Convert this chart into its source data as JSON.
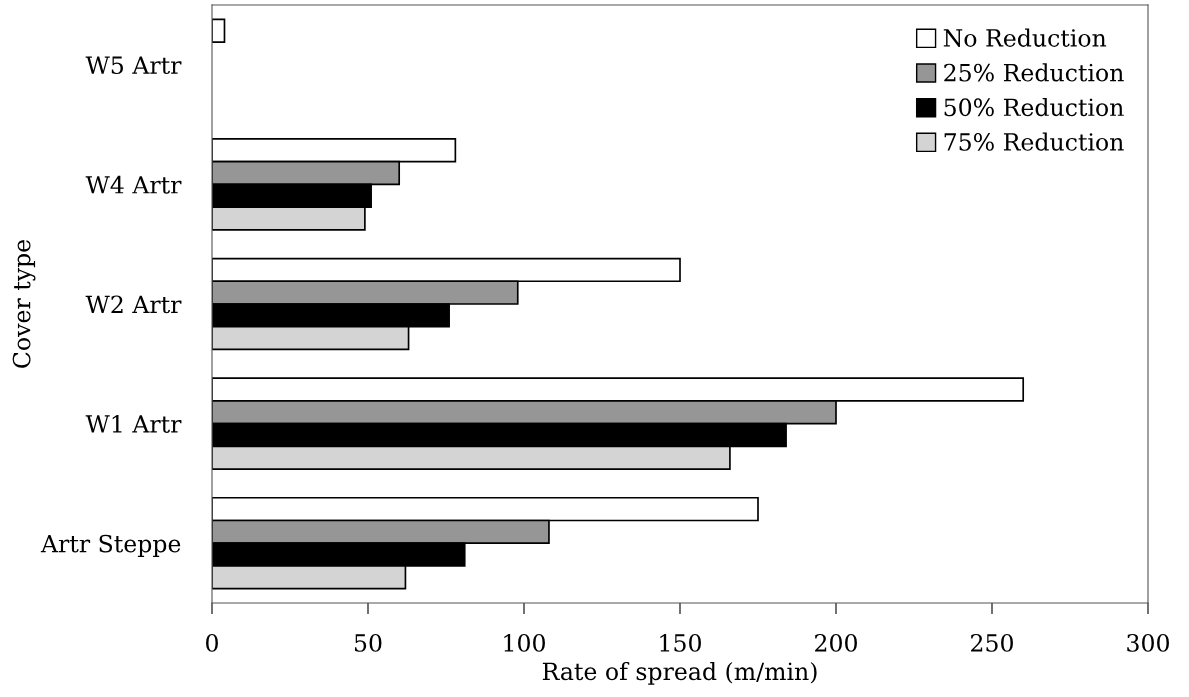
{
  "chart_data": {
    "type": "bar",
    "orientation": "horizontal",
    "xlabel": "Rate of spread (m/min)",
    "ylabel": "Cover type",
    "categories": [
      "W5 Artr",
      "W4 Artr",
      "W2 Artr",
      "W1 Artr",
      "Artr Steppe"
    ],
    "series": [
      {
        "name": "No Reduction",
        "color": "#ffffff",
        "values": [
          4,
          78,
          150,
          260,
          175
        ]
      },
      {
        "name": "25% Reduction",
        "color": "#969696",
        "values": [
          null,
          60,
          98,
          200,
          108
        ]
      },
      {
        "name": "50% Reduction",
        "color": "#000000",
        "values": [
          null,
          51,
          76,
          184,
          81
        ]
      },
      {
        "name": "75% Reduction",
        "color": "#d4d4d4",
        "values": [
          null,
          49,
          63,
          166,
          62
        ]
      }
    ],
    "xlim": [
      0,
      300
    ],
    "xticks": [
      0,
      50,
      100,
      150,
      200,
      250,
      300
    ],
    "grid": false,
    "legend": "top right"
  }
}
